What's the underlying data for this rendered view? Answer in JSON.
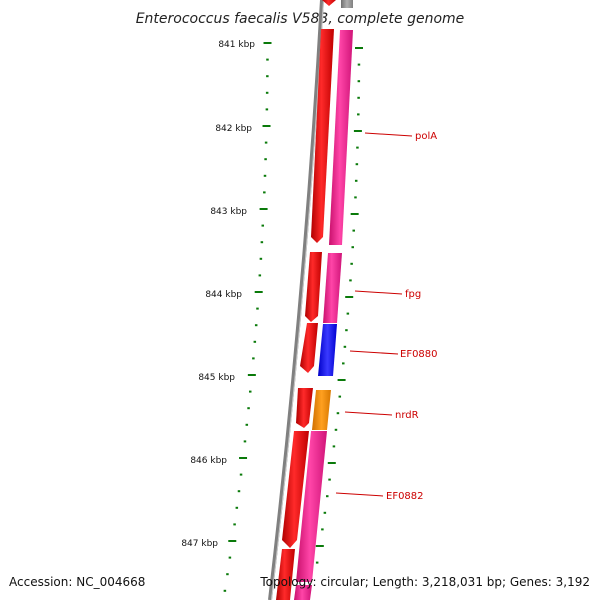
{
  "title": "Enterococcus faecalis V583, complete genome",
  "accession": "Accession: NC_004668",
  "summary": "Topology: circular; Length: 3,218,031 bp; Genes: 3,192",
  "colors": {
    "backbone": "#808080",
    "tick": "#0a7a0a",
    "label": "#cc0000",
    "forward_gene": "#ff0000",
    "reverse_gene": "#ff1493",
    "blue_gene": "#1010ff",
    "orange_gene": "#ff8c00"
  },
  "kbp_labels": [
    "841 kbp",
    "842 kbp",
    "843 kbp",
    "844 kbp",
    "845 kbp",
    "846 kbp",
    "847 kbp"
  ],
  "gene_labels": [
    {
      "name": "polA",
      "color": "#cc0000"
    },
    {
      "name": "fpg",
      "color": "#cc0000"
    },
    {
      "name": "EF0880",
      "color": "#cc0000"
    },
    {
      "name": "nrdR",
      "color": "#cc0000"
    },
    {
      "name": "EF0882",
      "color": "#cc0000"
    }
  ]
}
